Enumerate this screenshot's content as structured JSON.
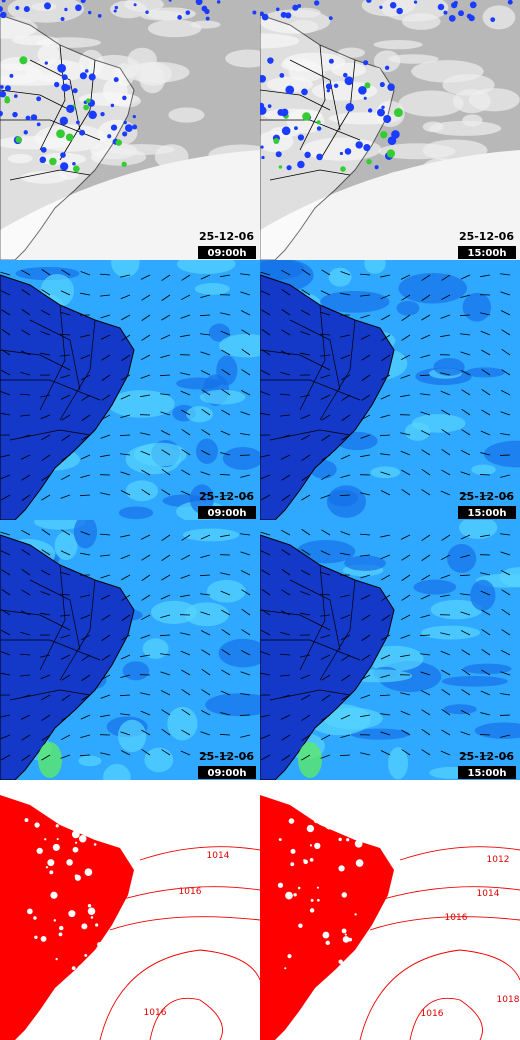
{
  "panels": [
    {
      "date": "25-12-06",
      "time": "09:00h"
    },
    {
      "date": "25-12-06",
      "time": "15:00h"
    },
    {
      "date": "25-12-06",
      "time": "09:00h"
    },
    {
      "date": "25-12-06",
      "time": "15:00h"
    },
    {
      "date": "25-12-06",
      "time": "09:00h"
    },
    {
      "date": "25-12-06",
      "time": "15:00h"
    }
  ],
  "isobar_labels": {
    "left": [
      "1014",
      "1016",
      "1016"
    ],
    "right": [
      "1012",
      "1014",
      "1016",
      "1018",
      "1016"
    ]
  }
}
